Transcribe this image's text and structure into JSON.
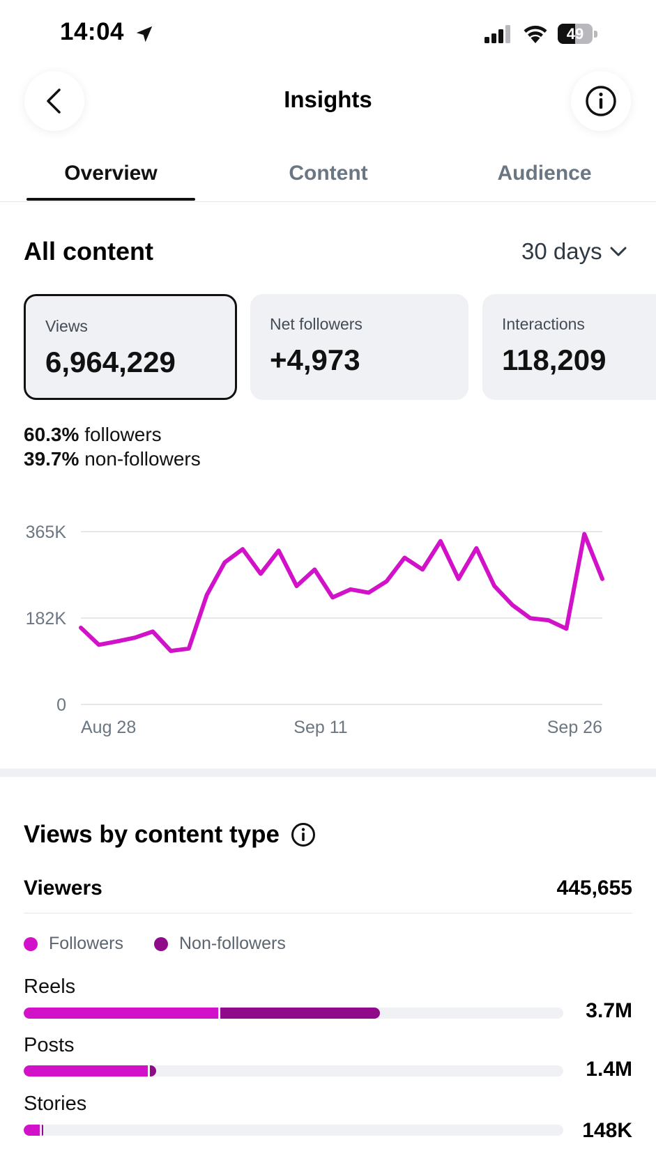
{
  "status_bar": {
    "time": "14:04",
    "battery": "49",
    "battery_level": 0.49
  },
  "header": {
    "title": "Insights"
  },
  "tabs": [
    {
      "label": "Overview",
      "active": true
    },
    {
      "label": "Content",
      "active": false
    },
    {
      "label": "Audience",
      "active": false
    }
  ],
  "all_content": {
    "heading": "All content",
    "range_label": "30 days"
  },
  "metrics": [
    {
      "label": "Views",
      "value": "6,964,229",
      "selected": true
    },
    {
      "label": "Net followers",
      "value": "+4,973",
      "selected": false
    },
    {
      "label": "Interactions",
      "value": "118,209",
      "selected": false
    }
  ],
  "split": {
    "followers_pct": "60.3%",
    "followers_text": "followers",
    "nonfollowers_pct": "39.7%",
    "nonfollowers_text": "non-followers"
  },
  "chart_data": {
    "type": "line",
    "x_tick_labels": [
      "Aug 28",
      "Sep 11",
      "Sep 26"
    ],
    "y_tick_labels": [
      "365K",
      "182K",
      "0"
    ],
    "ylim": [
      0,
      365
    ],
    "grid": true,
    "color": "#d112c8",
    "series": [
      {
        "values": [
          162,
          126,
          133,
          141,
          154,
          113,
          118,
          231,
          300,
          328,
          276,
          325,
          250,
          285,
          226,
          243,
          236,
          260,
          310,
          285,
          345,
          265,
          330,
          250,
          210,
          182,
          178,
          160,
          360,
          265
        ]
      }
    ]
  },
  "views_by_type": {
    "heading": "Views by content type",
    "viewers_label": "Viewers",
    "viewers_value": "445,655",
    "legend": [
      {
        "label": "Followers",
        "color": "#d112c8"
      },
      {
        "label": "Non-followers",
        "color": "#8f0b8a"
      }
    ],
    "rows": [
      {
        "label": "Reels",
        "value": "3.7M",
        "followers_fraction": 0.36,
        "nonfollowers_fraction": 0.3
      },
      {
        "label": "Posts",
        "value": "1.4M",
        "followers_fraction": 0.23,
        "nonfollowers_fraction": 0.015
      },
      {
        "label": "Stories",
        "value": "148K",
        "followers_fraction": 0.03,
        "nonfollowers_fraction": 0.003
      }
    ]
  }
}
